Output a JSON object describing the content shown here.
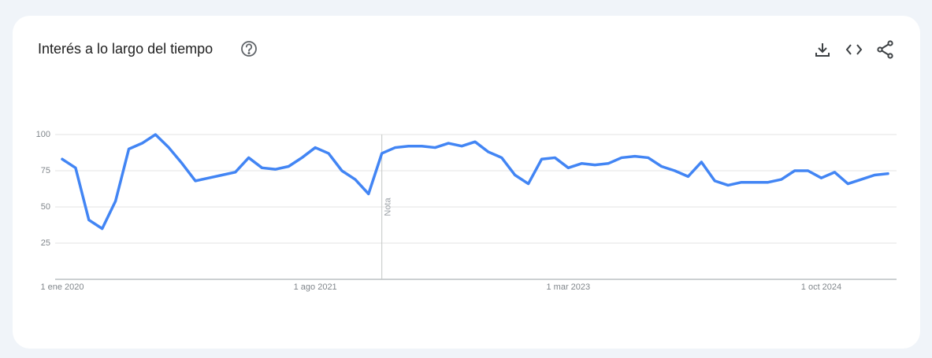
{
  "chart_data": {
    "type": "line",
    "title": "Interés a lo largo del tiempo",
    "x": [
      "2020-01",
      "2020-02",
      "2020-03",
      "2020-04",
      "2020-05",
      "2020-06",
      "2020-07",
      "2020-08",
      "2020-09",
      "2020-10",
      "2020-11",
      "2020-12",
      "2021-01",
      "2021-02",
      "2021-03",
      "2021-04",
      "2021-05",
      "2021-06",
      "2021-07",
      "2021-08",
      "2021-09",
      "2021-10",
      "2021-11",
      "2021-12",
      "2022-01",
      "2022-02",
      "2022-03",
      "2022-04",
      "2022-05",
      "2022-06",
      "2022-07",
      "2022-08",
      "2022-09",
      "2022-10",
      "2022-11",
      "2022-12",
      "2023-01",
      "2023-02",
      "2023-03",
      "2023-04",
      "2023-05",
      "2023-06",
      "2023-07",
      "2023-08",
      "2023-09",
      "2023-10",
      "2023-11",
      "2023-12",
      "2024-01",
      "2024-02",
      "2024-03",
      "2024-04",
      "2024-05",
      "2024-06",
      "2024-07",
      "2024-08",
      "2024-09",
      "2024-10",
      "2024-11",
      "2024-12",
      "2025-01",
      "2025-02",
      "2025-03"
    ],
    "series": [
      {
        "color": "#4285f4",
        "values": [
          83,
          77,
          41,
          35,
          54,
          90,
          94,
          100,
          91,
          80,
          68,
          70,
          72,
          74,
          84,
          77,
          76,
          78,
          84,
          91,
          87,
          75,
          69,
          59,
          87,
          91,
          92,
          92,
          91,
          94,
          92,
          95,
          88,
          84,
          72,
          66,
          83,
          84,
          77,
          80,
          79,
          80,
          84,
          85,
          84,
          78,
          75,
          71,
          81,
          68,
          65,
          67,
          67,
          67,
          69,
          75,
          75,
          70,
          74,
          66,
          69,
          72,
          73
        ]
      }
    ],
    "xlim": [
      "2020-01",
      "2025-03"
    ],
    "xticks": [
      {
        "value": "2020-01",
        "label": "1 ene 2020"
      },
      {
        "value": "2021-08",
        "label": "1 ago 2021"
      },
      {
        "value": "2023-03",
        "label": "1 mar 2023"
      },
      {
        "value": "2024-10",
        "label": "1 oct 2024"
      }
    ],
    "ylim": [
      0,
      100
    ],
    "yticks": [
      25,
      50,
      75,
      100
    ],
    "grid": true,
    "annotations": [
      {
        "x": "2022-01",
        "text": "Nota"
      }
    ]
  }
}
